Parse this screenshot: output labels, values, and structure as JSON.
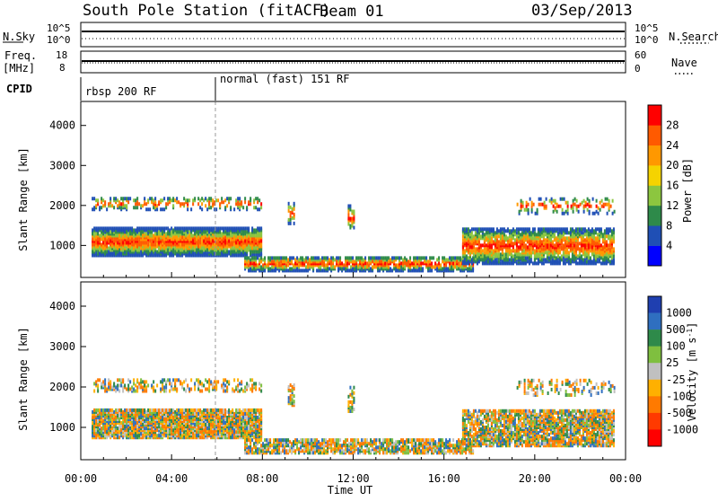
{
  "header": {
    "station": "South Pole Station (fitACF)",
    "beam": "Beam 01",
    "date": "03/Sep/2013"
  },
  "nsky_panel": {
    "left_label": "N.Sky",
    "left_ticks": [
      "10^5",
      "10^0"
    ],
    "right_ticks": [
      "10^5",
      "10^0"
    ],
    "right_label": "N.Search"
  },
  "freq_panel": {
    "left_label_line1": "Freq.",
    "left_label_line2": "[MHz]",
    "left_ticks": [
      "18",
      "8"
    ],
    "right_ticks": [
      "60",
      "0"
    ],
    "right_label": "Nave"
  },
  "cpid_panel": {
    "label": "CPID",
    "mode1": "rbsp 200 RF",
    "mode2": "normal (fast) 151 RF"
  },
  "chart_data": [
    {
      "type": "heatmap",
      "title": "",
      "xlabel": "Time UT",
      "ylabel": "Slant Range [km]",
      "x_ticks": [
        "00:00",
        "04:00",
        "08:00",
        "12:00",
        "16:00",
        "20:00",
        "00:00"
      ],
      "y_ticks": [
        "1000",
        "2000",
        "3000",
        "4000"
      ],
      "ylim": [
        200,
        4600
      ],
      "colorbar_label": "Power [dB]",
      "colorbar_ticks": [
        "4",
        "8",
        "12",
        "16",
        "20",
        "24",
        "28"
      ],
      "colorbar_colors": [
        "#0000ff",
        "#1f4fb5",
        "#2e8a4a",
        "#8cc63f",
        "#f5d300",
        "#ff9800",
        "#ff5a00",
        "#ff0000"
      ]
    },
    {
      "type": "heatmap",
      "title": "",
      "xlabel": "Time UT",
      "ylabel": "Slant Range [km]",
      "x_ticks": [
        "00:00",
        "04:00",
        "08:00",
        "12:00",
        "16:00",
        "20:00",
        "00:00"
      ],
      "y_ticks": [
        "1000",
        "2000",
        "3000",
        "4000"
      ],
      "ylim": [
        200,
        4600
      ],
      "colorbar_label": "Velocity [m s^-1]",
      "colorbar_ticks": [
        "1000",
        "500",
        "100",
        "25",
        "-25",
        "-100",
        "-500",
        "-1000"
      ],
      "colorbar_colors": [
        "#1f3fb0",
        "#2f6fc0",
        "#2e8a4a",
        "#7fbf3f",
        "#c0c0c0",
        "#ffb000",
        "#ff7a00",
        "#ff3a00",
        "#ff0000"
      ]
    }
  ],
  "x_axis_label": "Time UT"
}
